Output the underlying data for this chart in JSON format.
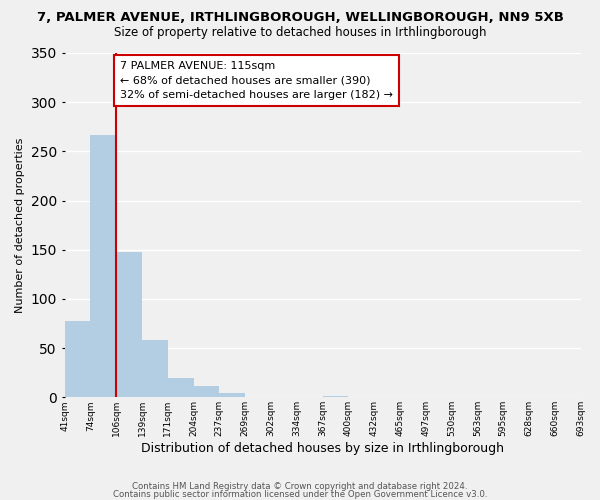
{
  "title": "7, PALMER AVENUE, IRTHLINGBOROUGH, WELLINGBOROUGH, NN9 5XB",
  "subtitle": "Size of property relative to detached houses in Irthlingborough",
  "xlabel": "Distribution of detached houses by size in Irthlingborough",
  "ylabel": "Number of detached properties",
  "bar_values": [
    78,
    267,
    148,
    58,
    20,
    11,
    4,
    0,
    0,
    0,
    1,
    0,
    0,
    0,
    0,
    0,
    0,
    0,
    0,
    0
  ],
  "bar_labels": [
    "41sqm",
    "74sqm",
    "106sqm",
    "139sqm",
    "171sqm",
    "204sqm",
    "237sqm",
    "269sqm",
    "302sqm",
    "334sqm",
    "367sqm",
    "400sqm",
    "432sqm",
    "465sqm",
    "497sqm",
    "530sqm",
    "563sqm",
    "595sqm",
    "628sqm",
    "660sqm",
    "693sqm"
  ],
  "bar_color": "#b3cde3",
  "annotation_title": "7 PALMER AVENUE: 115sqm",
  "annotation_line1": "← 68% of detached houses are smaller (390)",
  "annotation_line2": "32% of semi-detached houses are larger (182) →",
  "annotation_box_color": "#ffffff",
  "annotation_box_edge": "#cc0000",
  "red_line_color": "#cc0000",
  "ylim": [
    0,
    350
  ],
  "yticks": [
    0,
    50,
    100,
    150,
    200,
    250,
    300,
    350
  ],
  "footer_line1": "Contains HM Land Registry data © Crown copyright and database right 2024.",
  "footer_line2": "Contains public sector information licensed under the Open Government Licence v3.0.",
  "background_color": "#f0f0f0"
}
